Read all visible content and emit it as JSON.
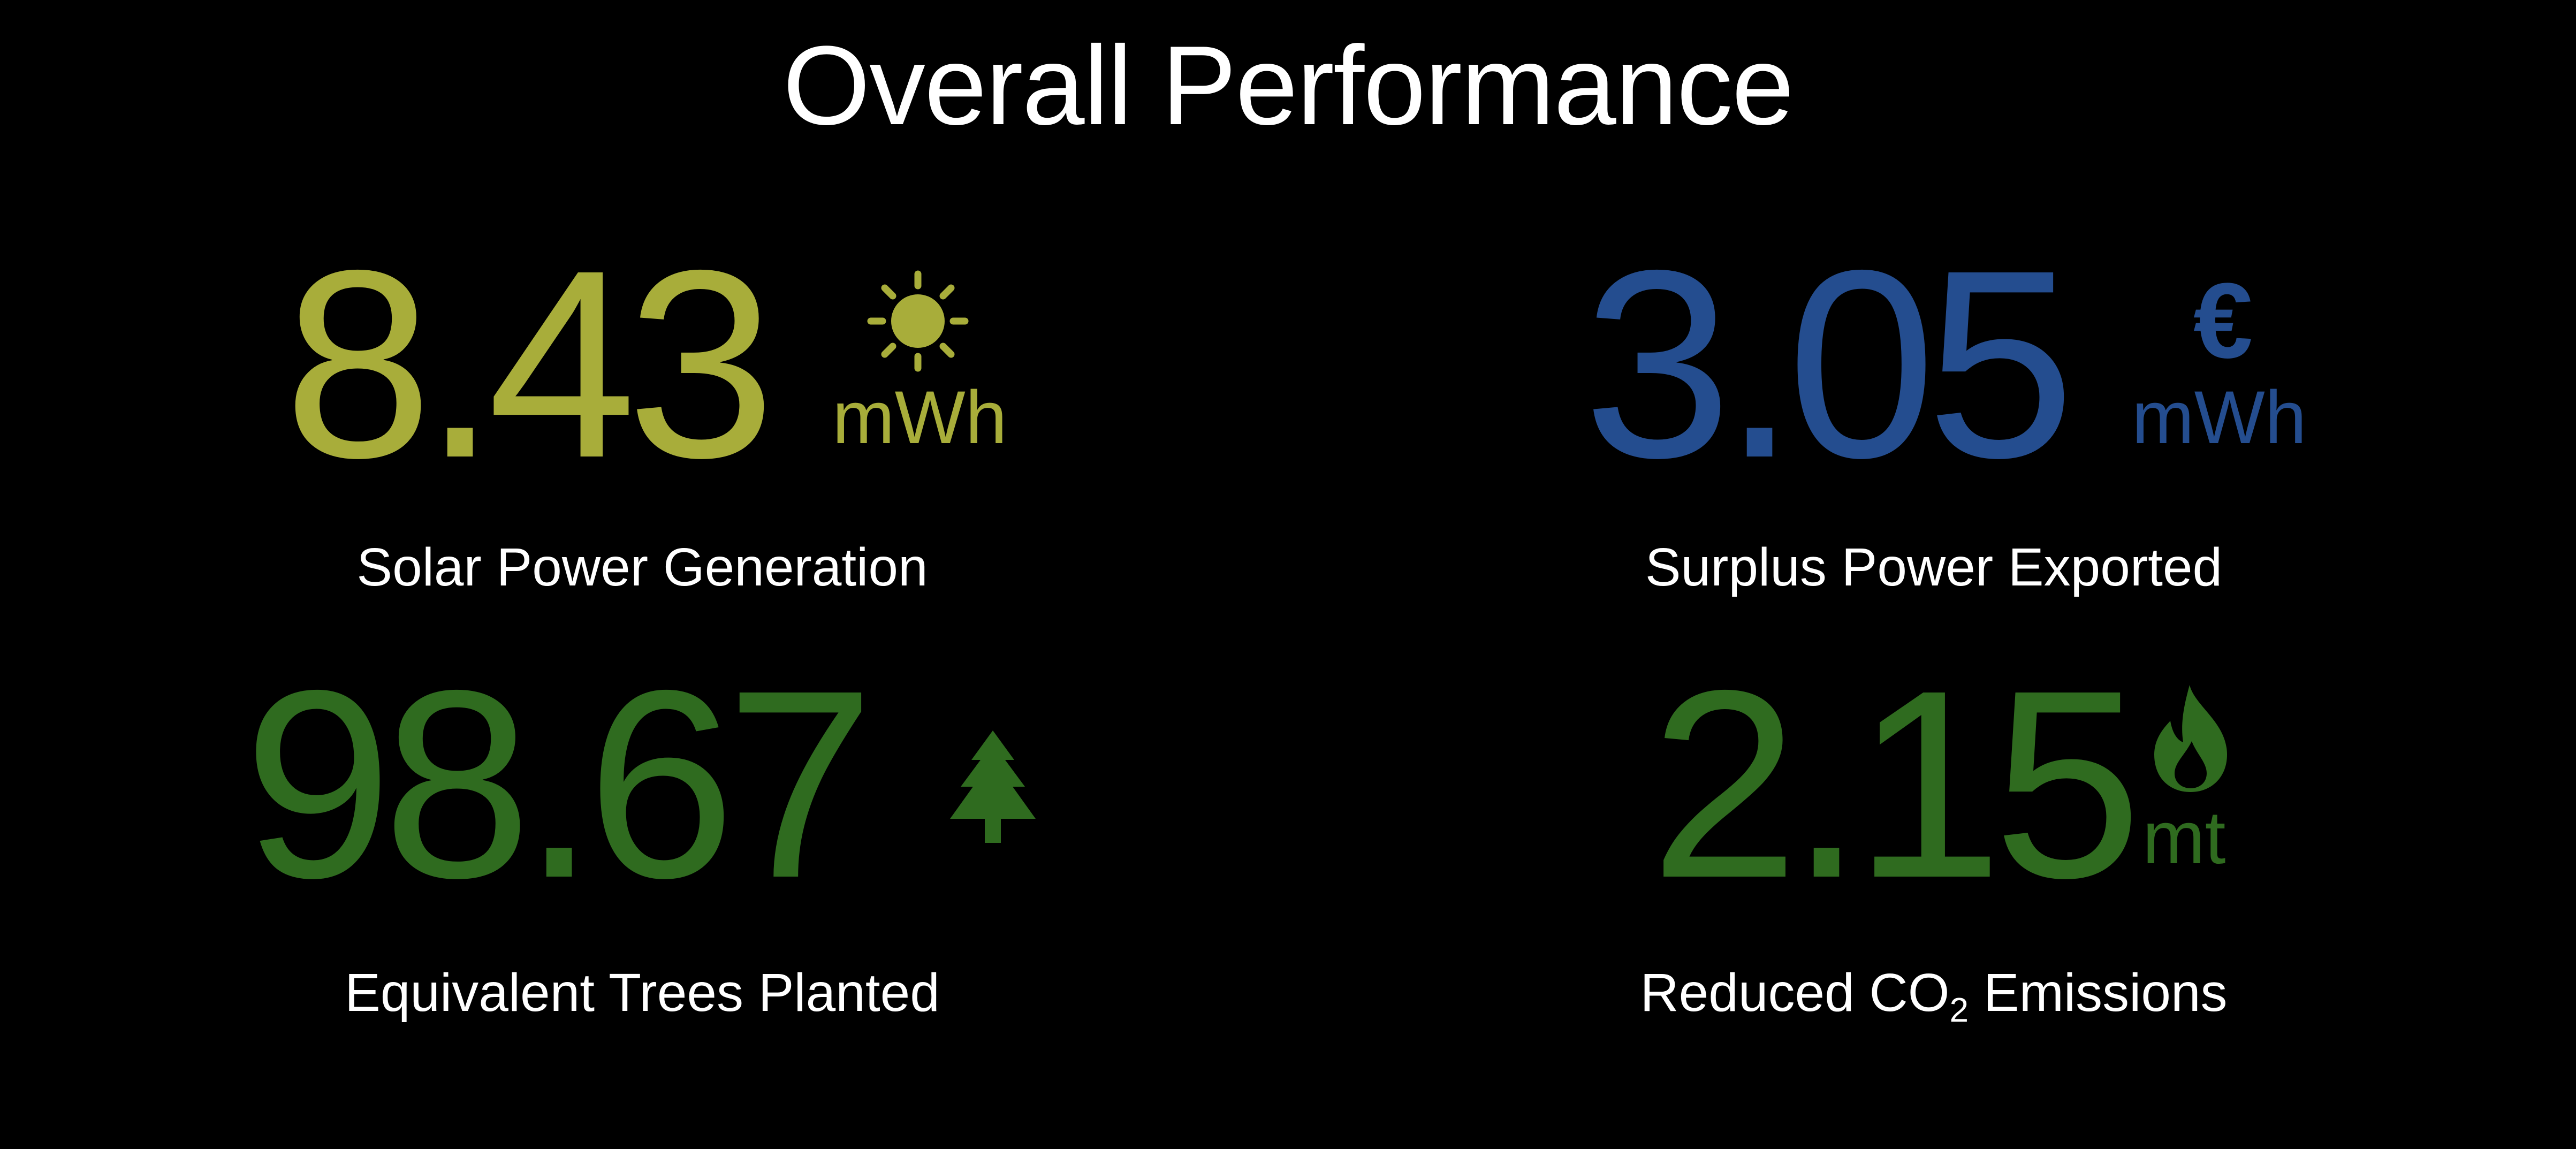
{
  "page": {
    "title": "Overall Performance"
  },
  "colors": {
    "background": "#000000",
    "text": "#ffffff",
    "solar": "#a8ad3a",
    "export": "#244d8f",
    "green": "#2f6b1f"
  },
  "metrics": {
    "solar": {
      "value": "8.43",
      "unit": "mWh",
      "label": "Solar Power Generation",
      "icon": "sun-icon"
    },
    "export": {
      "value": "3.05",
      "unit": "mWh",
      "label": "Surplus Power Exported",
      "icon": "euro-icon",
      "icon_text": "€"
    },
    "trees": {
      "value": "98.67",
      "label": "Equivalent Trees Planted",
      "icon": "tree-icon"
    },
    "co2": {
      "value": "2.15",
      "unit": "mt",
      "label_before": "Reduced CO",
      "label_sub": "2",
      "label_after": " Emissions",
      "icon": "flame-icon"
    }
  }
}
